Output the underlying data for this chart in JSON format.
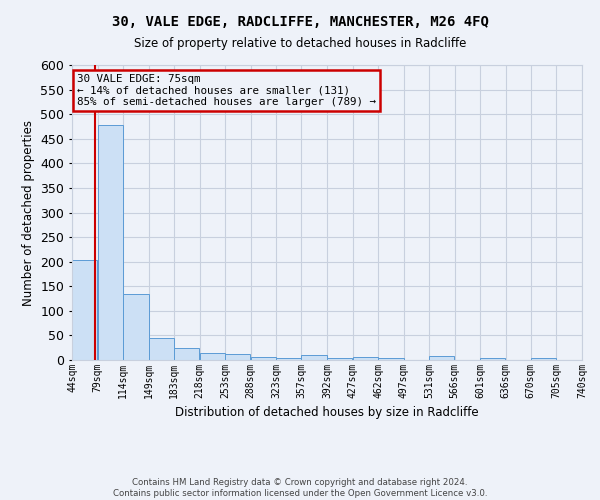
{
  "title": "30, VALE EDGE, RADCLIFFE, MANCHESTER, M26 4FQ",
  "subtitle": "Size of property relative to detached houses in Radcliffe",
  "xlabel": "Distribution of detached houses by size in Radcliffe",
  "ylabel": "Number of detached properties",
  "footer_line1": "Contains HM Land Registry data © Crown copyright and database right 2024.",
  "footer_line2": "Contains public sector information licensed under the Open Government Licence v3.0.",
  "annotation_line1": "30 VALE EDGE: 75sqm",
  "annotation_line2": "← 14% of detached houses are smaller (131)",
  "annotation_line3": "85% of semi-detached houses are larger (789) →",
  "property_size": 75,
  "bar_color": "#cce0f5",
  "bar_edge_color": "#5b9bd5",
  "marker_color": "#cc0000",
  "annotation_box_color": "#cc0000",
  "background_color": "#eef2f9",
  "grid_color": "#c8d0de",
  "bins": [
    44,
    79,
    114,
    149,
    183,
    218,
    253,
    288,
    323,
    357,
    392,
    427,
    462,
    497,
    531,
    566,
    601,
    636,
    670,
    705,
    740
  ],
  "bin_labels": [
    "44sqm",
    "79sqm",
    "114sqm",
    "149sqm",
    "183sqm",
    "218sqm",
    "253sqm",
    "288sqm",
    "323sqm",
    "357sqm",
    "392sqm",
    "427sqm",
    "462sqm",
    "497sqm",
    "531sqm",
    "566sqm",
    "601sqm",
    "636sqm",
    "670sqm",
    "705sqm",
    "740sqm"
  ],
  "values": [
    203,
    477,
    135,
    44,
    25,
    15,
    12,
    7,
    5,
    11,
    5,
    6,
    5,
    0,
    8,
    0,
    5,
    0,
    5,
    0,
    5
  ],
  "ylim": [
    0,
    600
  ],
  "yticks": [
    0,
    50,
    100,
    150,
    200,
    250,
    300,
    350,
    400,
    450,
    500,
    550,
    600
  ]
}
